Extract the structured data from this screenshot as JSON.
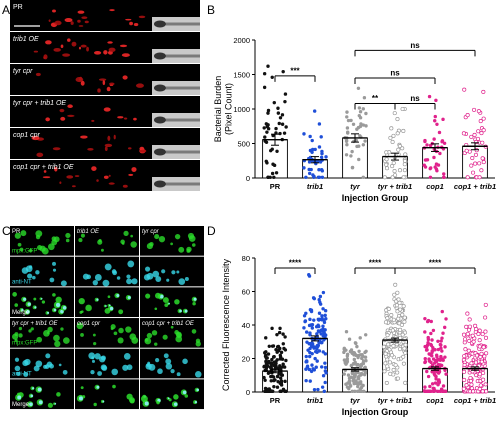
{
  "panels": {
    "A": {
      "letter": "A",
      "images": [
        {
          "label": "PR"
        },
        {
          "label": "trib1 OE"
        },
        {
          "label": "tyr cpr"
        },
        {
          "label": "tyr cpr + trib1 OE"
        },
        {
          "label": "cop1 cpr"
        },
        {
          "label": "cop1 cpr + trib1 OE"
        }
      ]
    },
    "C": {
      "letter": "C",
      "columns_top": [
        "PR",
        "trib1 OE",
        "tyr cpr"
      ],
      "columns_bottom": [
        "tyr cpr + trib1 OE",
        "cop1 cpr",
        "cop1 cpr + trib1 OE"
      ],
      "row_labels": [
        "mpx:GFP",
        "anti-NT",
        "Merge"
      ]
    }
  },
  "chart_data": [
    {
      "panel": "B",
      "type": "scatter",
      "ylabel": "Bacterial Burden (Pixel Count)",
      "ylabel_lines": [
        "Bacterial Burden",
        "(Pixel Count)"
      ],
      "xlabel": "Injection Group",
      "categories": [
        "PR",
        "trib1",
        "tyr",
        "tyr + trib1",
        "cop1",
        "cop1 + trib1"
      ],
      "ylim": [
        0,
        2000
      ],
      "yticks": [
        0,
        500,
        1000,
        1500,
        2000
      ],
      "colors": [
        "#111111",
        "#1f4fd8",
        "#9a9a9a",
        "#9a9a9a",
        "#e0228c",
        "#e0228c"
      ],
      "hollow": [
        false,
        false,
        false,
        true,
        false,
        true
      ],
      "mean": [
        555,
        265,
        580,
        310,
        440,
        460
      ],
      "sem": [
        80,
        45,
        60,
        50,
        55,
        50
      ],
      "n": [
        45,
        42,
        42,
        40,
        40,
        42
      ],
      "max": [
        1620,
        970,
        1300,
        1000,
        1180,
        1280
      ],
      "significance": [
        {
          "pair": [
            0,
            1
          ],
          "label": "***",
          "level": 1480
        },
        {
          "pair": [
            2,
            3
          ],
          "label": "**",
          "level": 1080
        },
        {
          "pair": [
            3,
            4
          ],
          "label": "ns",
          "level": 1080
        },
        {
          "pair": [
            2,
            4
          ],
          "label": "ns",
          "level": 1450
        },
        {
          "pair": [
            2,
            5
          ],
          "label": "ns",
          "level": 1850
        }
      ]
    },
    {
      "panel": "D",
      "type": "scatter",
      "ylabel": "Corrected Fluorescence Intensity",
      "xlabel": "Injection Group",
      "categories": [
        "PR",
        "trib1",
        "tyr",
        "tyr + trib1",
        "cop1",
        "cop1 + trib1"
      ],
      "ylim": [
        0,
        80
      ],
      "yticks": [
        0,
        20,
        40,
        60,
        80
      ],
      "colors": [
        "#111111",
        "#1f4fd8",
        "#9a9a9a",
        "#9a9a9a",
        "#e0228c",
        "#e0228c"
      ],
      "hollow": [
        false,
        false,
        false,
        true,
        false,
        true
      ],
      "mean": [
        12.5,
        32,
        13.5,
        31,
        14,
        14
      ],
      "sem": [
        1.0,
        1.5,
        1.0,
        1.2,
        1.0,
        1.0
      ],
      "n": [
        130,
        120,
        120,
        140,
        130,
        150
      ],
      "max": [
        38,
        70,
        36,
        64,
        48,
        52
      ],
      "significance": [
        {
          "pair": [
            0,
            1
          ],
          "label": "****",
          "level": 74
        },
        {
          "pair": [
            2,
            3
          ],
          "label": "****",
          "level": 74
        },
        {
          "pair": [
            3,
            5
          ],
          "label": "****",
          "level": 74
        }
      ]
    }
  ]
}
